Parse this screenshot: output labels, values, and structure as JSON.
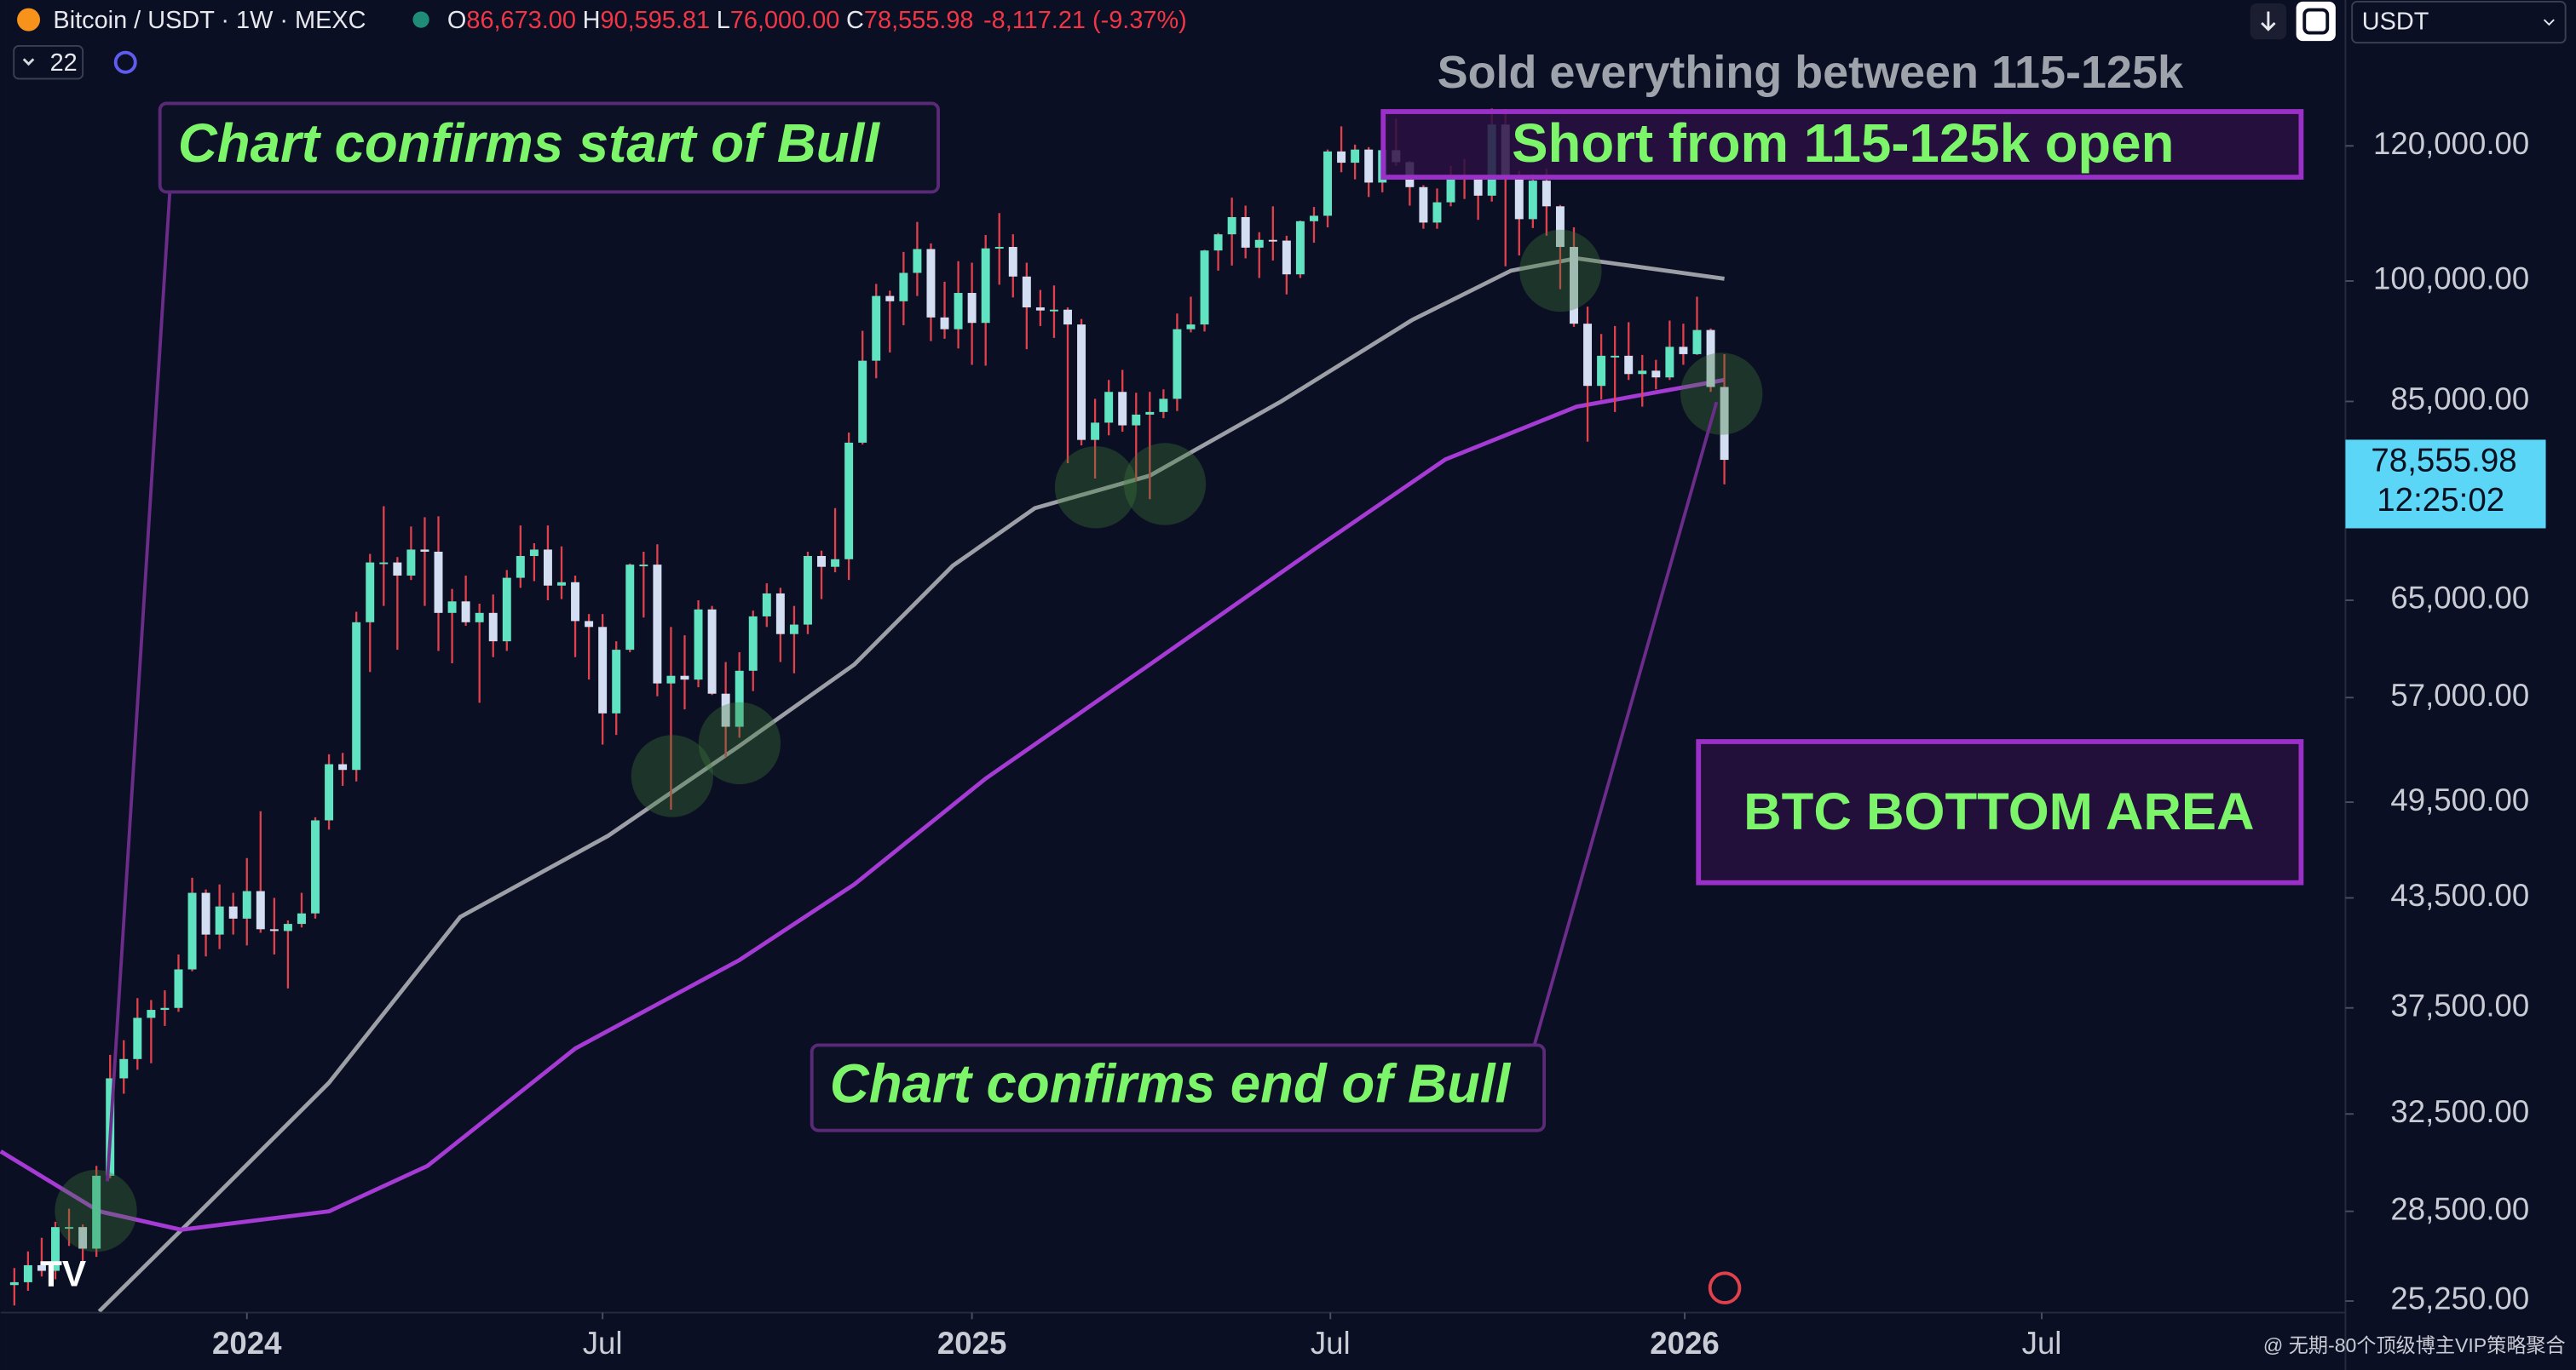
{
  "header": {
    "symbol": "Bitcoin / USDT · 1W · MEXC",
    "o_label": "O",
    "o": "86,673.00",
    "h_label": "H",
    "h": "90,595.81",
    "l_label": "L",
    "l": "76,000.00",
    "c_label": "C",
    "c": "78,555.98",
    "change": "-8,117.21 (-9.37%)",
    "interval_count": "22",
    "currency": "USDT"
  },
  "watermark": "@ 无期-80个顶级博主VIP策略聚合",
  "chart_data": {
    "type": "candlestick",
    "log_scale": true,
    "grid": false,
    "up_color": "#5fe3c1",
    "down_color": "#d3def2",
    "wick_color": "#e0414b",
    "xlim": [
      -1,
      170.4
    ],
    "ylim": [
      24860,
      146100
    ],
    "xticks": [
      {
        "value": 17,
        "label": "2024"
      },
      {
        "value": 43,
        "label": "Jul"
      },
      {
        "value": 70,
        "label": "2025"
      },
      {
        "value": 96.2,
        "label": "Jul"
      },
      {
        "value": 122.1,
        "label": "2026"
      },
      {
        "value": 148.2,
        "label": "Jul"
      }
    ],
    "yticks": [
      {
        "value": 25250,
        "label": "25,250.00"
      },
      {
        "value": 28500,
        "label": "28,500.00"
      },
      {
        "value": 32500,
        "label": "32,500.00"
      },
      {
        "value": 37500,
        "label": "37,500.00"
      },
      {
        "value": 43500,
        "label": "43,500.00"
      },
      {
        "value": 49500,
        "label": "49,500.00"
      },
      {
        "value": 57000,
        "label": "57,000.00"
      },
      {
        "value": 65000,
        "label": "65,000.00"
      },
      {
        "value": 85000,
        "label": "85,000.00"
      },
      {
        "value": 100000,
        "label": "100,000.00"
      },
      {
        "value": 120000,
        "label": "120,000.00"
      }
    ],
    "ohlc": [
      [
        25800,
        26400,
        25100,
        25900
      ],
      [
        25900,
        27000,
        25600,
        26500
      ],
      [
        26500,
        27500,
        26100,
        26300
      ],
      [
        26300,
        28100,
        26000,
        27900
      ],
      [
        27900,
        28600,
        27200,
        27900
      ],
      [
        27900,
        28000,
        26500,
        27100
      ],
      [
        27100,
        30300,
        26800,
        29900
      ],
      [
        29900,
        35200,
        29800,
        34100
      ],
      [
        34100,
        35900,
        33400,
        35000
      ],
      [
        35000,
        38000,
        34500,
        37000
      ],
      [
        37000,
        37900,
        34800,
        37400
      ],
      [
        37400,
        38400,
        36600,
        37500
      ],
      [
        37500,
        40300,
        37300,
        39500
      ],
      [
        39500,
        44700,
        39400,
        43800
      ],
      [
        43800,
        44000,
        40200,
        41400
      ],
      [
        41400,
        44300,
        40600,
        43000
      ],
      [
        43000,
        43800,
        41400,
        42300
      ],
      [
        42300,
        45900,
        40800,
        43900
      ],
      [
        43900,
        48900,
        41500,
        41700
      ],
      [
        41700,
        43500,
        40300,
        41600
      ],
      [
        41600,
        42200,
        38500,
        42000
      ],
      [
        42000,
        43800,
        41800,
        42600
      ],
      [
        42600,
        48500,
        42300,
        48300
      ],
      [
        48300,
        52800,
        47700,
        52100
      ],
      [
        52100,
        52900,
        50600,
        51700
      ],
      [
        51700,
        64000,
        50900,
        63100
      ],
      [
        63100,
        69200,
        59000,
        68400
      ],
      [
        68400,
        73800,
        64500,
        68400
      ],
      [
        68400,
        68900,
        60800,
        67200
      ],
      [
        67200,
        71800,
        66800,
        69600
      ],
      [
        69600,
        72700,
        64500,
        69400
      ],
      [
        69400,
        72800,
        60700,
        63900
      ],
      [
        63900,
        66000,
        59700,
        64900
      ],
      [
        64900,
        67200,
        62800,
        63100
      ],
      [
        63100,
        64700,
        56600,
        63900
      ],
      [
        63900,
        65500,
        60200,
        61500
      ],
      [
        61500,
        67700,
        60700,
        67000
      ],
      [
        67000,
        71900,
        66100,
        69000
      ],
      [
        69000,
        70200,
        66700,
        69600
      ],
      [
        69600,
        71900,
        65000,
        66300
      ],
      [
        66300,
        69900,
        65100,
        66600
      ],
      [
        66600,
        67200,
        60200,
        63200
      ],
      [
        63200,
        63800,
        58400,
        62700
      ],
      [
        62700,
        63800,
        53500,
        55800
      ],
      [
        55800,
        61500,
        54200,
        60800
      ],
      [
        60800,
        68300,
        60600,
        68200
      ],
      [
        68200,
        69400,
        63500,
        68200
      ],
      [
        68200,
        70100,
        57100,
        58100
      ],
      [
        58100,
        62700,
        49000,
        58700
      ],
      [
        58700,
        62000,
        56100,
        58400
      ],
      [
        58400,
        65000,
        57800,
        64200
      ],
      [
        64200,
        64500,
        57200,
        57300
      ],
      [
        57300,
        59800,
        52600,
        54800
      ],
      [
        54800,
        60600,
        54000,
        59100
      ],
      [
        59100,
        64100,
        57500,
        63600
      ],
      [
        63600,
        66500,
        62700,
        65600
      ],
      [
        65600,
        66100,
        59800,
        62100
      ],
      [
        62100,
        64500,
        58900,
        62900
      ],
      [
        62900,
        69400,
        62100,
        69000
      ],
      [
        69000,
        69500,
        65100,
        68000
      ],
      [
        68000,
        73600,
        67500,
        68700
      ],
      [
        68700,
        81500,
        66800,
        80400
      ],
      [
        80400,
        93500,
        80200,
        89800
      ],
      [
        89800,
        99600,
        87700,
        98000
      ],
      [
        98000,
        98700,
        90800,
        97300
      ],
      [
        97300,
        104000,
        94200,
        101100
      ],
      [
        101100,
        108300,
        98000,
        104400
      ],
      [
        104400,
        105200,
        92200,
        95200
      ],
      [
        95200,
        99900,
        92500,
        93700
      ],
      [
        93700,
        102700,
        91300,
        98400
      ],
      [
        98400,
        102500,
        89300,
        94500
      ],
      [
        94500,
        106400,
        89200,
        104500
      ],
      [
        104500,
        109600,
        99500,
        104700
      ],
      [
        104700,
        106500,
        97800,
        100600
      ],
      [
        100600,
        102500,
        91200,
        96500
      ],
      [
        96500,
        98800,
        94100,
        96100
      ],
      [
        96100,
        99400,
        92600,
        96200
      ],
      [
        96200,
        96500,
        78200,
        94300
      ],
      [
        94300,
        95000,
        80100,
        80700
      ],
      [
        80700,
        85300,
        76600,
        82600
      ],
      [
        82600,
        87500,
        81200,
        86100
      ],
      [
        86100,
        88700,
        81600,
        82300
      ],
      [
        82300,
        86000,
        76300,
        83500
      ],
      [
        83500,
        86100,
        74500,
        83800
      ],
      [
        83800,
        86400,
        83100,
        85300
      ],
      [
        85300,
        95700,
        83900,
        93700
      ],
      [
        93700,
        97900,
        93300,
        94300
      ],
      [
        94300,
        104300,
        93400,
        104200
      ],
      [
        104200,
        106700,
        101400,
        106500
      ],
      [
        106500,
        111900,
        102100,
        109000
      ],
      [
        109000,
        110700,
        103100,
        104600
      ],
      [
        104600,
        106800,
        100400,
        105700
      ],
      [
        105700,
        110600,
        102800,
        105600
      ],
      [
        105600,
        106300,
        98200,
        100900
      ],
      [
        100900,
        108500,
        100400,
        108400
      ],
      [
        108400,
        110500,
        105300,
        109200
      ],
      [
        109200,
        119400,
        107500,
        119100
      ],
      [
        119100,
        123200,
        115800,
        117300
      ],
      [
        117300,
        120200,
        114700,
        119400
      ],
      [
        119400,
        119800,
        112000,
        114200
      ],
      [
        114200,
        124400,
        112700,
        119300
      ],
      [
        119300,
        124500,
        116800,
        117400
      ],
      [
        117400,
        117600,
        110700,
        113500
      ],
      [
        113500,
        113800,
        107300,
        108200
      ],
      [
        108200,
        113300,
        107300,
        111200
      ],
      [
        111200,
        116800,
        110600,
        115300
      ],
      [
        115300,
        117900,
        111700,
        115200
      ],
      [
        115200,
        115300,
        108600,
        112200
      ],
      [
        112200,
        126200,
        111300,
        123500
      ],
      [
        123500,
        126100,
        102000,
        115200
      ],
      [
        115200,
        116000,
        103500,
        108700
      ],
      [
        108700,
        115500,
        107400,
        114500
      ],
      [
        114500,
        116400,
        106300,
        110600
      ],
      [
        110600,
        110800,
        98900,
        104700
      ],
      [
        104700,
        107500,
        94000,
        94400
      ],
      [
        94400,
        96600,
        80500,
        86800
      ],
      [
        86800,
        93100,
        85200,
        90400
      ],
      [
        90400,
        94100,
        83800,
        90400
      ],
      [
        90400,
        94600,
        87500,
        88200
      ],
      [
        88200,
        90500,
        84400,
        88600
      ],
      [
        88600,
        89900,
        86400,
        87800
      ],
      [
        87800,
        94800,
        87500,
        91500
      ],
      [
        91500,
        94400,
        89300,
        90600
      ],
      [
        90600,
        97900,
        90500,
        93600
      ],
      [
        93600,
        93800,
        86100,
        86673
      ],
      [
        86673,
        90595.81,
        76000,
        78555.98
      ]
    ],
    "moving_averages": [
      {
        "color": "#9c9fa6",
        "x": [
          6.2,
          13.4,
          23,
          32.6,
          43.4,
          53,
          61.4,
          68.6,
          74.6,
          83,
          92.6,
          102.2,
          109.4,
          114.2,
          125
        ],
        "values": [
          24900,
          28400,
          33900,
          42400,
          47300,
          53400,
          59600,
          68100,
          73600,
          76900,
          85000,
          94900,
          101400,
          103100,
          100300
        ]
      },
      {
        "color": "#a53bd4",
        "x": [
          -1,
          6.2,
          12.2,
          23,
          30.2,
          41,
          53,
          61.4,
          71,
          83,
          95,
          104.6,
          114.2,
          125
        ],
        "values": [
          30900,
          28500,
          27800,
          28500,
          30300,
          35500,
          40000,
          44300,
          51100,
          59600,
          69600,
          78600,
          84400,
          87500
        ]
      }
    ],
    "last_price_label": "78,555.98",
    "countdown": "12:25:02",
    "annotations": {
      "start": "Chart confirms start of Bull",
      "sold": "Sold everything between 115-125k",
      "short": "Short from 115-125k open",
      "end": "Chart confirms end of Bull",
      "bottom": "BTC BOTTOM AREA"
    }
  }
}
